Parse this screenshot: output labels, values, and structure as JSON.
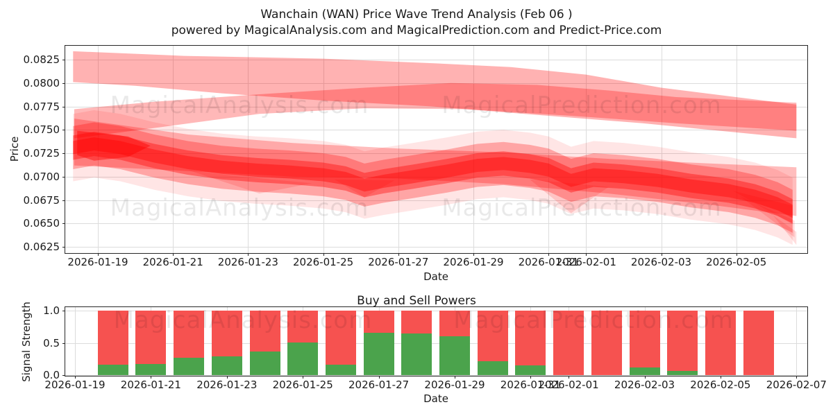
{
  "title": {
    "line1": "Wanchain (WAN) Price Wave Trend Analysis (Feb 06 )",
    "line2": "powered by MagicalAnalysis.com and MagicalPrediction.com and Predict-Price.com"
  },
  "watermarks": {
    "analysis": "MagicalAnalysis.com",
    "prediction": "MagicalPrediction.com"
  },
  "colors": {
    "wave": "#ff0000",
    "bar_red": "#f65250",
    "bar_green": "#4ba34c",
    "grid": "#dcdcdc",
    "spine": "#262626",
    "text": "#1a1a1a",
    "watermark": "rgba(0,0,0,0.085)"
  },
  "chart_data": [
    {
      "type": "area",
      "title": "Wanchain (WAN) Price Wave Trend Analysis (Feb 06 )",
      "xlabel": "Date",
      "ylabel": "Price",
      "ylim": [
        0.0619,
        0.084
      ],
      "grid": true,
      "legend": "none",
      "x_ticks": [
        {
          "label": "2026-01-19",
          "d": 0
        },
        {
          "label": "2026-01-21",
          "d": 2
        },
        {
          "label": "2026-01-23",
          "d": 4
        },
        {
          "label": "2026-01-25",
          "d": 6
        },
        {
          "label": "2026-01-27",
          "d": 8
        },
        {
          "label": "2026-01-29",
          "d": 10
        },
        {
          "label": "2026-01-31",
          "d": 12
        },
        {
          "label": "2026-02-01",
          "d": 13
        },
        {
          "label": "2026-02-03",
          "d": 15
        },
        {
          "label": "2026-02-05",
          "d": 17
        }
      ],
      "y_ticks": [
        {
          "label": "0.0825",
          "v": 0.0825
        },
        {
          "label": "0.0800",
          "v": 0.08
        },
        {
          "label": "0.0775",
          "v": 0.0775
        },
        {
          "label": "0.0750",
          "v": 0.075
        },
        {
          "label": "0.0725",
          "v": 0.0725
        },
        {
          "label": "0.0700",
          "v": 0.07
        },
        {
          "label": "0.0675",
          "v": 0.0675
        },
        {
          "label": "0.0650",
          "v": 0.065
        },
        {
          "label": "0.0625",
          "v": 0.0625
        }
      ],
      "bands": [
        {
          "name": "upper-forecast-band",
          "opacity": 0.3,
          "points": [
            [
              -0.66,
              0.0834
            ],
            [
              2.3,
              0.0829
            ],
            [
              6,
              0.0826
            ],
            [
              9,
              0.0821
            ],
            [
              11,
              0.0817
            ],
            [
              13,
              0.0809
            ],
            [
              15,
              0.0795
            ],
            [
              16.8,
              0.0786
            ],
            [
              18.6,
              0.0777
            ],
            [
              18.6,
              0.0741
            ],
            [
              16.8,
              0.0748
            ],
            [
              14.5,
              0.0757
            ],
            [
              11.7,
              0.0766
            ],
            [
              8.9,
              0.0775
            ],
            [
              6.1,
              0.0781
            ],
            [
              3.3,
              0.0789
            ],
            [
              1,
              0.0797
            ],
            [
              -0.66,
              0.0801
            ]
          ]
        },
        {
          "name": "upper-inner-band",
          "opacity": 0.28,
          "points": [
            [
              -0.63,
              0.0772
            ],
            [
              1.5,
              0.078
            ],
            [
              4.3,
              0.0788
            ],
            [
              7.1,
              0.0795
            ],
            [
              9.4,
              0.08
            ],
            [
              11.7,
              0.0798
            ],
            [
              13.6,
              0.0792
            ],
            [
              15.4,
              0.0785
            ],
            [
              18.6,
              0.0779
            ],
            [
              18.6,
              0.0749
            ],
            [
              15.4,
              0.0757
            ],
            [
              12.6,
              0.0765
            ],
            [
              9.8,
              0.0772
            ],
            [
              7.1,
              0.0773
            ],
            [
              4.3,
              0.0767
            ],
            [
              1.5,
              0.0752
            ],
            [
              -0.63,
              0.0741
            ]
          ]
        },
        {
          "name": "lower-forecast-band",
          "opacity": 0.26,
          "points": [
            [
              -0.63,
              0.0762
            ],
            [
              2.4,
              0.0745
            ],
            [
              5.2,
              0.0736
            ],
            [
              8,
              0.073
            ],
            [
              10.8,
              0.0726
            ],
            [
              13.6,
              0.0719
            ],
            [
              16.3,
              0.0714
            ],
            [
              18.6,
              0.071
            ],
            [
              18.6,
              0.0658
            ],
            [
              16.3,
              0.067
            ],
            [
              13.6,
              0.0682
            ],
            [
              10.8,
              0.0692
            ],
            [
              8,
              0.0698
            ],
            [
              5.2,
              0.07
            ],
            [
              2.4,
              0.0706
            ],
            [
              -0.63,
              0.0712
            ]
          ]
        },
        {
          "name": "early-dip-wisp",
          "opacity": 0.14,
          "points": [
            [
              2.4,
              0.0707
            ],
            [
              4.3,
              0.0682
            ],
            [
              5.7,
              0.0693
            ],
            [
              3.8,
              0.07
            ]
          ]
        },
        {
          "name": "mid-dip-wisp-1",
          "opacity": 0.14,
          "points": [
            [
              6.3,
              0.0697
            ],
            [
              7.1,
              0.0678
            ],
            [
              7.9,
              0.0696
            ]
          ]
        },
        {
          "name": "mid-dip-wisp-2",
          "opacity": 0.14,
          "points": [
            [
              11.5,
              0.0697
            ],
            [
              12.6,
              0.0661
            ],
            [
              13.6,
              0.0689
            ]
          ]
        },
        {
          "name": "end-fan-wisp-1",
          "opacity": 0.15,
          "points": [
            [
              16.9,
              0.0685
            ],
            [
              18.5,
              0.0669
            ],
            [
              18.5,
              0.0649
            ]
          ]
        },
        {
          "name": "end-fan-wisp-2",
          "opacity": 0.14,
          "points": [
            [
              17.1,
              0.0679
            ],
            [
              18.55,
              0.0653
            ],
            [
              18.55,
              0.0635
            ]
          ]
        },
        {
          "name": "end-fan-wisp-3",
          "opacity": 0.13,
          "points": [
            [
              17.4,
              0.0675
            ],
            [
              18.6,
              0.0641
            ],
            [
              18.6,
              0.0627
            ],
            [
              17.95,
              0.066
            ]
          ]
        },
        {
          "name": "start-dark-blob",
          "opacity": 0.45,
          "points": [
            [
              -0.55,
              0.0749
            ],
            [
              0.8,
              0.0743
            ],
            [
              1.4,
              0.0733
            ],
            [
              0.8,
              0.0721
            ],
            [
              -0.1,
              0.0717
            ],
            [
              -0.55,
              0.0723
            ]
          ]
        }
      ],
      "core_path": [
        [
          -0.66,
          0.0731
        ],
        [
          -0.1,
          0.0735
        ],
        [
          0.6,
          0.0731
        ],
        [
          1.5,
          0.0722
        ],
        [
          2.4,
          0.0715
        ],
        [
          3.3,
          0.071
        ],
        [
          4.2,
          0.0707
        ],
        [
          5.1,
          0.0705
        ],
        [
          6.0,
          0.0702
        ],
        [
          6.6,
          0.0698
        ],
        [
          7.1,
          0.0691
        ],
        [
          7.6,
          0.0695
        ],
        [
          8.4,
          0.07
        ],
        [
          9.3,
          0.0706
        ],
        [
          10.1,
          0.0712
        ],
        [
          10.8,
          0.0714
        ],
        [
          11.5,
          0.0711
        ],
        [
          12.0,
          0.0707
        ],
        [
          12.6,
          0.0696
        ],
        [
          13.2,
          0.0702
        ],
        [
          14.0,
          0.07
        ],
        [
          14.9,
          0.0696
        ],
        [
          15.8,
          0.069
        ],
        [
          16.8,
          0.0685
        ],
        [
          17.5,
          0.0679
        ],
        [
          18.1,
          0.0671
        ],
        [
          18.5,
          0.0663
        ]
      ],
      "core_layers": [
        {
          "name": "trend-halo",
          "opacity": 0.1,
          "halfwidth": 0.0036
        },
        {
          "name": "trend-mid",
          "opacity": 0.28,
          "halfwidth": 0.0023
        },
        {
          "name": "trend-dark",
          "opacity": 0.38,
          "halfwidth": 0.0013
        },
        {
          "name": "trend-core",
          "opacity": 0.4,
          "halfwidth": 0.0007
        }
      ]
    },
    {
      "type": "bar",
      "title": "Buy and Sell Powers",
      "xlabel": "Date",
      "ylabel": "Signal Strength",
      "stacked": true,
      "ylim": [
        0,
        1.05
      ],
      "grid": true,
      "categories": [
        "2026-01-20",
        "2026-01-21",
        "2026-01-22",
        "2026-01-23",
        "2026-01-24",
        "2026-01-25",
        "2026-01-26",
        "2026-01-27",
        "2026-01-28",
        "2026-01-29",
        "2026-01-30",
        "2026-01-31",
        "2026-02-01",
        "2026-02-02",
        "2026-02-03",
        "2026-02-04",
        "2026-02-05",
        "2026-02-06"
      ],
      "series": [
        {
          "name": "Buy Power",
          "color": "#4ba34c",
          "values": [
            0.16,
            0.17,
            0.27,
            0.29,
            0.37,
            0.5,
            0.16,
            0.66,
            0.65,
            0.6,
            0.21,
            0.15,
            0.0,
            0.0,
            0.12,
            0.06,
            0.0,
            0.0
          ]
        },
        {
          "name": "Sell Power",
          "color": "#f65250",
          "values": [
            0.84,
            0.83,
            0.73,
            0.71,
            0.63,
            0.5,
            0.84,
            0.34,
            0.35,
            0.4,
            0.79,
            0.85,
            1.0,
            1.0,
            0.88,
            0.94,
            1.0,
            1.0
          ]
        }
      ],
      "x_ticks": [
        {
          "label": "2026-01-19",
          "d": 0
        },
        {
          "label": "2026-01-21",
          "d": 2
        },
        {
          "label": "2026-01-23",
          "d": 4
        },
        {
          "label": "2026-01-25",
          "d": 6
        },
        {
          "label": "2026-01-27",
          "d": 8
        },
        {
          "label": "2026-01-29",
          "d": 10
        },
        {
          "label": "2026-01-31",
          "d": 12
        },
        {
          "label": "2026-02-01",
          "d": 13
        },
        {
          "label": "2026-02-03",
          "d": 15
        },
        {
          "label": "2026-02-05",
          "d": 17
        },
        {
          "label": "2026-02-07",
          "d": 19
        }
      ],
      "y_ticks": [
        {
          "label": "0.0",
          "v": 0.0
        },
        {
          "label": "0.5",
          "v": 0.5
        },
        {
          "label": "1.0",
          "v": 1.0
        }
      ]
    }
  ]
}
